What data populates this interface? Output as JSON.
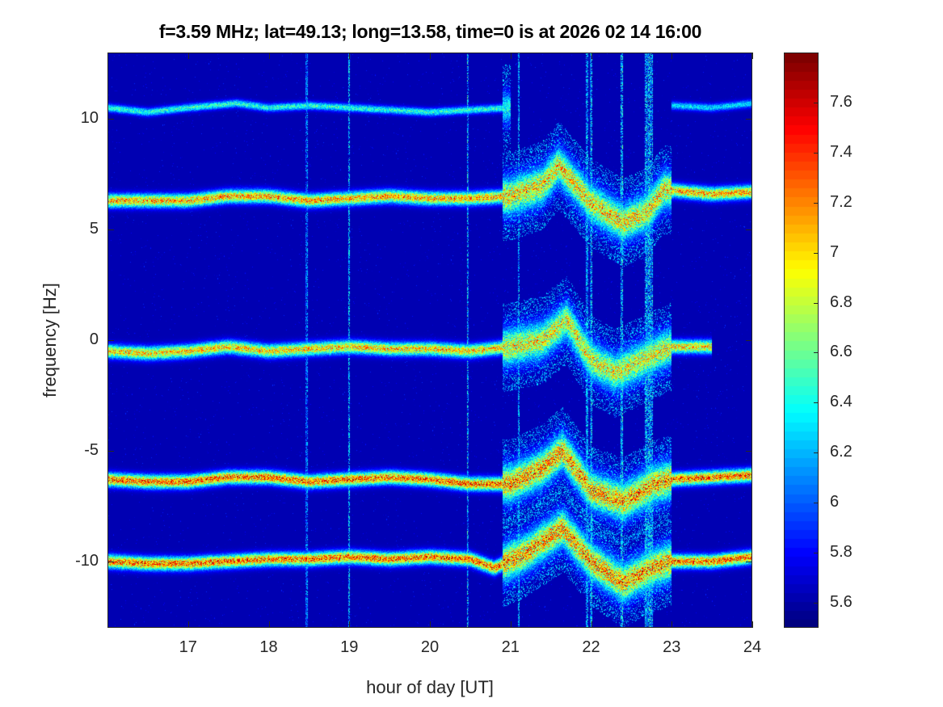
{
  "chart_data": {
    "type": "heatmap",
    "title": "f=3.59 MHz;  lat=49.13; long=13.58, time=0 is at 2026 02 14 16:00",
    "xlabel": "hour of day [UT]",
    "ylabel": "frequency [Hz]",
    "xlim": [
      16,
      24
    ],
    "ylim": [
      -13,
      13
    ],
    "xticks": [
      17,
      18,
      19,
      20,
      21,
      22,
      23,
      24
    ],
    "yticks": [
      -10,
      -5,
      0,
      5,
      10
    ],
    "colormap": "jet",
    "clim": [
      5.5,
      7.8
    ],
    "colorbar_ticks": [
      5.6,
      5.8,
      6,
      6.2,
      6.4,
      6.6,
      6.8,
      7,
      7.2,
      7.4,
      7.6
    ],
    "colorbar_tick_labels": [
      "5.6",
      "5.8",
      "6",
      "6.2",
      "6.4",
      "6.6",
      "6.8",
      "7",
      "7.2",
      "7.4",
      "7.6"
    ],
    "background_level": 5.55,
    "traces": [
      {
        "hours": [
          16.0,
          16.5,
          17.0,
          17.6,
          18.0,
          18.5,
          19.0,
          19.5,
          20.0,
          20.5,
          21.0
        ],
        "freq_hz": [
          10.5,
          10.3,
          10.5,
          10.7,
          10.5,
          10.6,
          10.5,
          10.4,
          10.3,
          10.4,
          10.5
        ],
        "peak_level": 6.6
      },
      {
        "hours": [
          23.0,
          23.5,
          24.0
        ],
        "freq_hz": [
          10.6,
          10.5,
          10.7
        ],
        "peak_level": 6.4
      },
      {
        "hours": [
          16.0,
          16.5,
          17.0,
          17.5,
          18.0,
          18.5,
          19.0,
          19.5,
          20.0,
          20.5,
          21.0,
          21.4,
          21.6,
          22.0,
          22.4,
          22.7,
          22.9,
          23.5,
          24.0
        ],
        "freq_hz": [
          6.3,
          6.3,
          6.3,
          6.5,
          6.5,
          6.3,
          6.4,
          6.5,
          6.4,
          6.4,
          6.5,
          7.0,
          7.9,
          6.2,
          5.3,
          5.8,
          6.8,
          6.6,
          6.7
        ],
        "peak_level": 7.4
      },
      {
        "hours": [
          16.0,
          16.5,
          17.0,
          17.5,
          18.0,
          18.5,
          19.0,
          19.5,
          20.0,
          20.5,
          21.0,
          21.4,
          21.7,
          22.0,
          22.3,
          22.7,
          23.0,
          23.5
        ],
        "freq_hz": [
          -0.5,
          -0.6,
          -0.5,
          -0.3,
          -0.5,
          -0.4,
          -0.3,
          -0.4,
          -0.4,
          -0.5,
          -0.3,
          0.0,
          0.9,
          -0.9,
          -1.5,
          -0.8,
          -0.3,
          -0.3
        ],
        "peak_level": 7.3
      },
      {
        "hours": [
          16.0,
          16.5,
          17.0,
          17.5,
          18.0,
          18.5,
          19.0,
          19.5,
          20.0,
          20.5,
          21.0,
          21.4,
          21.65,
          22.0,
          22.4,
          22.8,
          23.0,
          23.5,
          24.0
        ],
        "freq_hz": [
          -6.3,
          -6.4,
          -6.4,
          -6.2,
          -6.2,
          -6.4,
          -6.3,
          -6.2,
          -6.3,
          -6.5,
          -6.5,
          -5.8,
          -5.0,
          -6.8,
          -7.3,
          -6.5,
          -6.3,
          -6.2,
          -6.1
        ],
        "peak_level": 7.6
      },
      {
        "hours": [
          16.0,
          16.5,
          17.0,
          17.5,
          18.0,
          18.5,
          19.0,
          19.5,
          20.0,
          20.5,
          20.8,
          21.2,
          21.65,
          22.0,
          22.4,
          22.7,
          23.0,
          23.5,
          24.0
        ],
        "freq_hz": [
          -10.0,
          -10.1,
          -10.1,
          -10.0,
          -9.9,
          -9.9,
          -9.8,
          -9.9,
          -9.8,
          -9.9,
          -10.3,
          -9.6,
          -8.5,
          -10.0,
          -11.0,
          -10.4,
          -10.0,
          -10.0,
          -9.8
        ],
        "peak_level": 7.6
      }
    ],
    "vertical_streaks_hours": [
      18.47,
      19.0,
      20.47,
      21.1,
      21.95,
      22.0,
      22.38,
      22.72
    ]
  }
}
